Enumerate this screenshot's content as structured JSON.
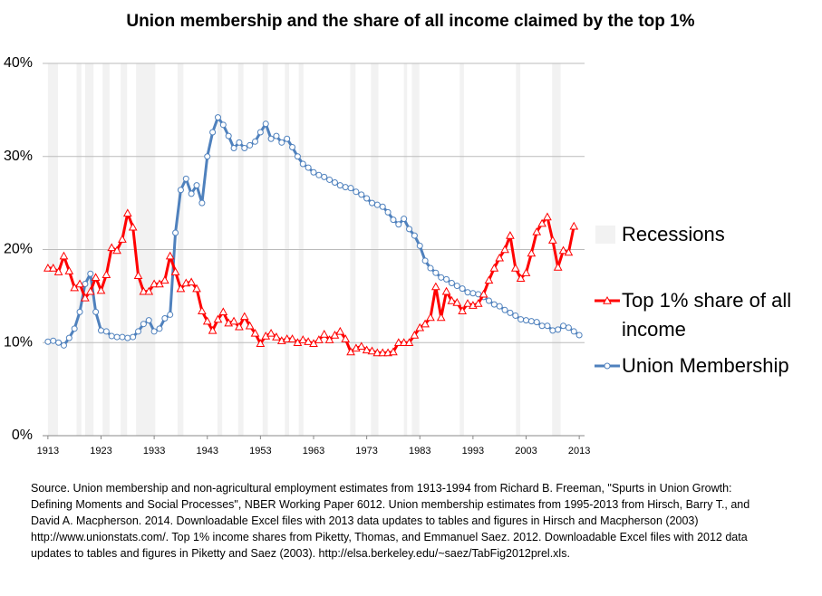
{
  "chart_data": {
    "type": "line",
    "title": "Union membership and the share of all income claimed by the top 1%",
    "x": [
      1913,
      1914,
      1915,
      1916,
      1917,
      1918,
      1919,
      1920,
      1921,
      1922,
      1923,
      1924,
      1925,
      1926,
      1927,
      1928,
      1929,
      1930,
      1931,
      1932,
      1933,
      1934,
      1935,
      1936,
      1937,
      1938,
      1939,
      1940,
      1941,
      1942,
      1943,
      1944,
      1945,
      1946,
      1947,
      1948,
      1949,
      1950,
      1951,
      1952,
      1953,
      1954,
      1955,
      1956,
      1957,
      1958,
      1959,
      1960,
      1961,
      1962,
      1963,
      1964,
      1965,
      1966,
      1967,
      1968,
      1969,
      1970,
      1971,
      1972,
      1973,
      1974,
      1975,
      1976,
      1977,
      1978,
      1979,
      1980,
      1981,
      1982,
      1983,
      1984,
      1985,
      1986,
      1987,
      1988,
      1989,
      1990,
      1991,
      1992,
      1993,
      1994,
      1995,
      1996,
      1997,
      1998,
      1999,
      2000,
      2001,
      2002,
      2003,
      2004,
      2005,
      2006,
      2007,
      2008,
      2009,
      2010,
      2011,
      2012,
      2013
    ],
    "xlim": [
      1912,
      2014
    ],
    "xticks": [
      1913,
      1923,
      1933,
      1943,
      1953,
      1963,
      1973,
      1983,
      1993,
      2003,
      2013
    ],
    "ylim": [
      0,
      40
    ],
    "yticks": [
      {
        "value": 0,
        "label": "0%"
      },
      {
        "value": 10,
        "label": "10%"
      },
      {
        "value": 20,
        "label": "20%"
      },
      {
        "value": 30,
        "label": "30%"
      },
      {
        "value": 40,
        "label": "40%"
      }
    ],
    "grid": true,
    "recessions": {
      "name": "Recessions",
      "color": "#f2f2f2",
      "ranges": [
        [
          1913,
          1914.9
        ],
        [
          1918.4,
          1919.3
        ],
        [
          1920,
          1921.6
        ],
        [
          1923.3,
          1924.6
        ],
        [
          1926.7,
          1927.9
        ],
        [
          1929.6,
          1933.2
        ],
        [
          1937.4,
          1938.5
        ],
        [
          1944.9,
          1945.8
        ],
        [
          1948.8,
          1949.8
        ],
        [
          1953.4,
          1954.4
        ],
        [
          1957.6,
          1958.4
        ],
        [
          1960.2,
          1961.1
        ],
        [
          1969.9,
          1970.9
        ],
        [
          1973.8,
          1975.2
        ],
        [
          1980,
          1980.6
        ],
        [
          1981.5,
          1982.9
        ],
        [
          1990.5,
          1991.3
        ],
        [
          2001.1,
          2001.9
        ],
        [
          2007.9,
          2009.5
        ]
      ]
    },
    "series": [
      {
        "name": "Top 1% share of all income",
        "color": "#ff0000",
        "marker": "triangle",
        "values": [
          18.0,
          18.0,
          17.6,
          19.3,
          17.7,
          15.9,
          16.3,
          14.8,
          15.5,
          17.0,
          15.6,
          17.3,
          20.2,
          19.9,
          21.1,
          23.9,
          22.4,
          17.2,
          15.5,
          15.5,
          16.3,
          16.3,
          16.7,
          19.3,
          17.6,
          15.8,
          16.4,
          16.5,
          15.8,
          13.4,
          12.3,
          11.3,
          12.5,
          13.3,
          12.1,
          12.3,
          11.7,
          12.8,
          11.8,
          11.0,
          9.9,
          10.7,
          11.0,
          10.6,
          10.2,
          10.4,
          10.4,
          10.0,
          10.3,
          10.1,
          9.9,
          10.3,
          10.9,
          10.3,
          10.8,
          11.2,
          10.4,
          9.0,
          9.4,
          9.6,
          9.2,
          9.1,
          8.9,
          8.9,
          8.9,
          9.0,
          10.0,
          10.0,
          10.0,
          10.8,
          11.6,
          12.0,
          12.7,
          16.0,
          12.7,
          15.5,
          14.5,
          14.3,
          13.4,
          14.2,
          14.0,
          14.2,
          15.2,
          16.7,
          18.0,
          19.1,
          20.0,
          21.5,
          18.0,
          16.9,
          17.5,
          19.6,
          21.9,
          22.8,
          23.5,
          21.0,
          18.1,
          19.9,
          19.7,
          22.5,
          null
        ]
      },
      {
        "name": "Union Membership",
        "color": "#4f81bd",
        "marker": "circle",
        "values": [
          10.1,
          10.2,
          10.0,
          9.7,
          10.5,
          11.5,
          13.3,
          16.3,
          17.4,
          13.3,
          11.3,
          11.2,
          10.7,
          10.6,
          10.6,
          10.5,
          10.6,
          11.2,
          12.0,
          12.4,
          11.2,
          11.5,
          12.6,
          13.0,
          21.8,
          26.4,
          27.6,
          26.0,
          26.9,
          25.0,
          30.0,
          32.6,
          34.2,
          33.4,
          32.2,
          30.9,
          31.5,
          30.9,
          31.2,
          31.6,
          32.6,
          33.5,
          31.9,
          32.2,
          31.5,
          31.9,
          31.0,
          30.0,
          29.2,
          28.8,
          28.3,
          28.0,
          27.8,
          27.5,
          27.2,
          26.9,
          26.7,
          26.6,
          26.2,
          25.9,
          25.5,
          25.0,
          24.8,
          24.6,
          24.0,
          23.2,
          22.7,
          23.3,
          22.2,
          21.5,
          20.4,
          18.8,
          18.0,
          17.5,
          17.0,
          16.8,
          16.4,
          16.1,
          15.8,
          15.4,
          15.3,
          15.2,
          14.9,
          14.5,
          14.1,
          13.9,
          13.5,
          13.2,
          12.9,
          12.5,
          12.4,
          12.3,
          12.2,
          11.8,
          11.8,
          11.3,
          11.4,
          11.8,
          11.6,
          11.2,
          10.8
        ]
      }
    ],
    "source": "Source.  Union membership and  non-agricultural employment estimates from 1913-1994  from Richard B. Freeman, \"Spurts in Union Growth: Defining Moments and Social Processes\", NBER  Working Paper 6012.  Union membership estimates from 1995-2013  from Hirsch, Barry T., and David A. Macpherson. 2014.  Downloadable Excel files with 2013 data updates to tables and figures in Hirsch and Macpherson (2003)  http://www.unionstats.com/. Top 1% income shares from Piketty, Thomas, and Emmanuel Saez. 2012. Downloadable Excel files with 2012 data updates to tables and figures in Piketty and Saez (2003).  http://elsa.berkeley.edu/~saez/TabFig2012prel.xls."
  }
}
